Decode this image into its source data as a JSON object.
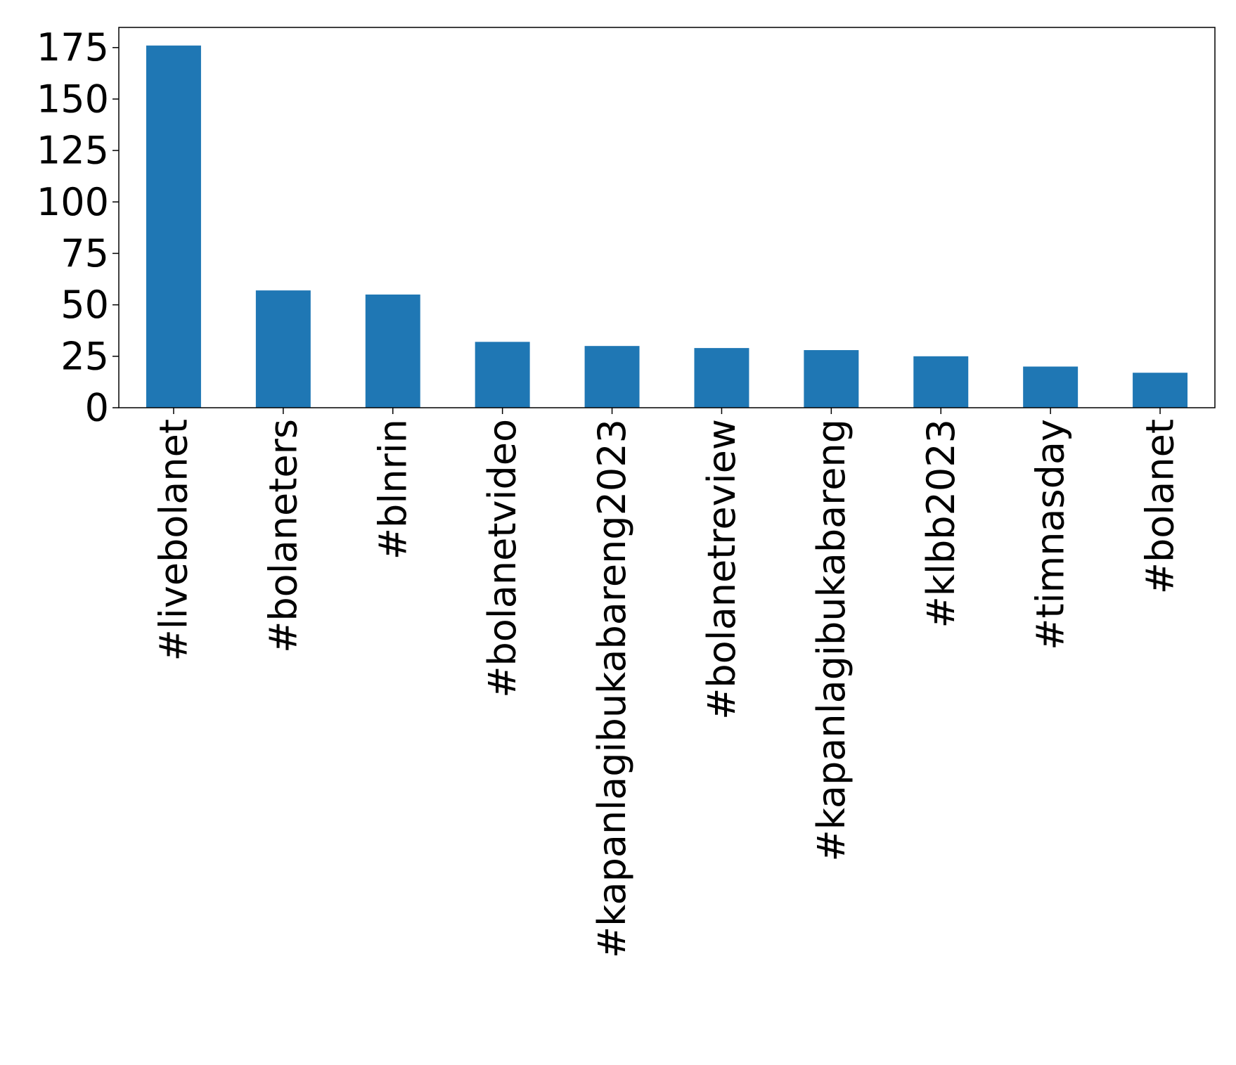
{
  "chart_data": {
    "type": "bar",
    "categories": [
      "#livebolanet",
      "#bolaneters",
      "#blnrin",
      "#bolanetvideo",
      "#kapanlagibukabareng2023",
      "#bolanetreview",
      "#kapanlagibukabareng",
      "#klbb2023",
      "#timnasday",
      "#bolanet"
    ],
    "values": [
      176,
      57,
      55,
      32,
      30,
      29,
      28,
      25,
      20,
      17
    ],
    "color": "#1f77b4",
    "ylim": [
      0,
      184.8
    ],
    "yticks": [
      0,
      25,
      50,
      75,
      100,
      125,
      150,
      175
    ],
    "grid": false
  }
}
